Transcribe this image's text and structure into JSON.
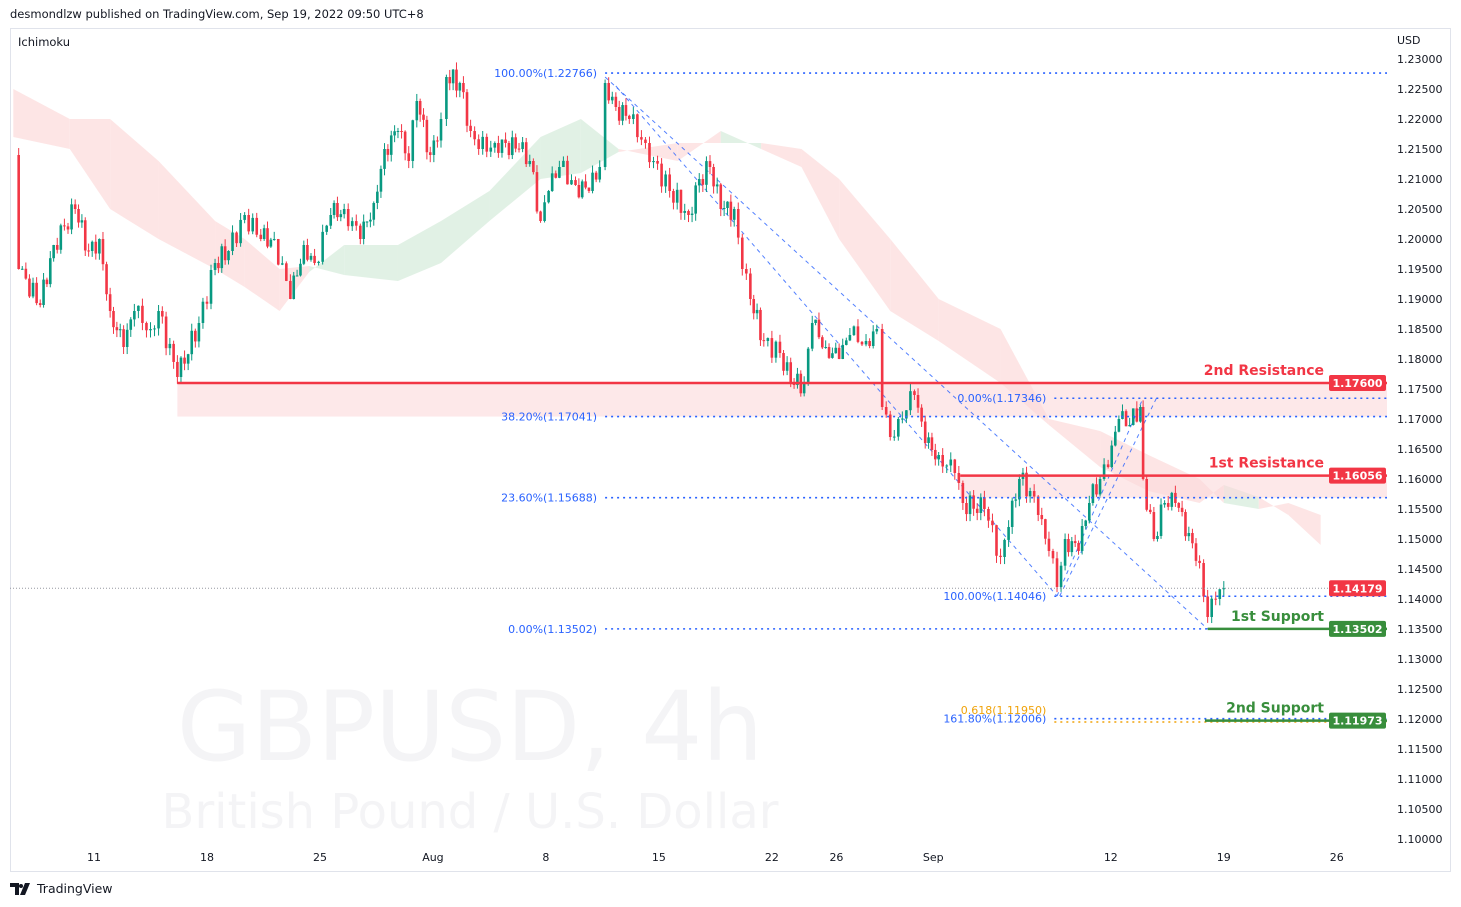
{
  "header": {
    "published": "desmondlzw published on TradingView.com, Sep 19, 2022 09:50 UTC+8",
    "indicator": "Ichimoku",
    "currency": "USD"
  },
  "watermark": {
    "symbol": "GBPUSD, 4h",
    "description": "British Pound / U.S. Dollar"
  },
  "footer": {
    "brand": "TradingView",
    "logo_icon": "tradingview-logo-icon"
  },
  "colors": {
    "up": "#089981",
    "down": "#f23645",
    "resistance": "#f23645",
    "support": "#388e3c",
    "fib": "#2962ff",
    "fib_ext": "#f0a30a",
    "cloud_bear": "#fcdcdc",
    "cloud_bull": "#d9eedf",
    "zone": "#fbd9db",
    "last_price": "#f23645"
  },
  "chart_data": {
    "type": "candlestick",
    "symbol": "GBPUSD",
    "timeframe": "4h",
    "ylim": [
      1.095,
      1.235
    ],
    "y_ticks": [
      "1.23000",
      "1.22500",
      "1.22000",
      "1.21500",
      "1.21000",
      "1.20500",
      "1.20000",
      "1.19500",
      "1.19000",
      "1.18500",
      "1.18000",
      "1.17500",
      "1.17000",
      "1.16500",
      "1.16000",
      "1.15500",
      "1.15000",
      "1.14500",
      "1.14000",
      "1.13500",
      "1.13000",
      "1.12500",
      "1.12000",
      "1.11500",
      "1.11000",
      "1.10500",
      "1.10000"
    ],
    "x_ticks": [
      {
        "date": "2022-07-11",
        "label": "11"
      },
      {
        "date": "2022-07-18",
        "label": "18"
      },
      {
        "date": "2022-07-25",
        "label": "25"
      },
      {
        "date": "2022-08-01",
        "label": "Aug"
      },
      {
        "date": "2022-08-08",
        "label": "8"
      },
      {
        "date": "2022-08-15",
        "label": "15"
      },
      {
        "date": "2022-08-22",
        "label": "22"
      },
      {
        "date": "2022-08-26",
        "label": "26"
      },
      {
        "date": "2022-09-01",
        "label": "Sep"
      },
      {
        "date": "2022-09-12",
        "label": "12"
      },
      {
        "date": "2022-09-19",
        "label": "19"
      },
      {
        "date": "2022-09-26",
        "label": "26"
      }
    ],
    "price_path": [
      [
        "2022-07-06T00",
        1.21
      ],
      [
        "2022-07-06T08",
        1.195
      ],
      [
        "2022-07-07T16",
        1.189
      ],
      [
        "2022-07-08T12",
        1.199
      ],
      [
        "2022-07-09T20",
        1.205
      ],
      [
        "2022-07-10T16",
        1.198
      ],
      [
        "2022-07-11T08",
        1.2
      ],
      [
        "2022-07-12T00",
        1.188
      ],
      [
        "2022-07-12T20",
        1.182
      ],
      [
        "2022-07-13T12",
        1.188
      ],
      [
        "2022-07-14T12",
        1.185
      ],
      [
        "2022-07-15T00",
        1.188
      ],
      [
        "2022-07-16T04",
        1.177
      ],
      [
        "2022-07-17T12",
        1.186
      ],
      [
        "2022-07-18T12",
        1.196
      ],
      [
        "2022-07-19T08",
        1.198
      ],
      [
        "2022-07-20T08",
        1.204
      ],
      [
        "2022-07-21T08",
        1.2
      ],
      [
        "2022-07-22T04",
        1.2
      ],
      [
        "2022-07-23T04",
        1.19
      ],
      [
        "2022-07-24T00",
        1.199
      ],
      [
        "2022-07-24T16",
        1.196
      ],
      [
        "2022-07-25T16",
        1.204
      ],
      [
        "2022-07-26T12",
        1.205
      ],
      [
        "2022-07-27T12",
        1.2
      ],
      [
        "2022-07-28T08",
        1.206
      ],
      [
        "2022-07-29T00",
        1.215
      ],
      [
        "2022-07-29T20",
        1.218
      ],
      [
        "2022-07-30T12",
        1.213
      ],
      [
        "2022-07-31T00",
        1.223
      ],
      [
        "2022-07-31T20",
        1.214
      ],
      [
        "2022-08-01T12",
        1.22
      ],
      [
        "2022-08-01T20",
        1.227
      ],
      [
        "2022-08-02T16",
        1.226
      ],
      [
        "2022-08-03T08",
        1.218
      ],
      [
        "2022-08-03T20",
        1.215
      ],
      [
        "2022-08-04T20",
        1.216
      ],
      [
        "2022-08-05T12",
        1.216
      ],
      [
        "2022-08-06T08",
        1.215
      ],
      [
        "2022-08-07T00",
        1.213
      ],
      [
        "2022-08-07T16",
        1.203
      ],
      [
        "2022-08-08T04",
        1.208
      ],
      [
        "2022-08-08T20",
        1.212
      ],
      [
        "2022-08-09T20",
        1.209
      ],
      [
        "2022-08-10T16",
        1.208
      ],
      [
        "2022-08-11T08",
        1.212
      ],
      [
        "2022-08-11T16",
        1.226
      ],
      [
        "2022-08-12T08",
        1.222
      ],
      [
        "2022-08-13T04",
        1.22
      ],
      [
        "2022-08-14T04",
        1.216
      ],
      [
        "2022-08-14T16",
        1.213
      ],
      [
        "2022-08-15T16",
        1.208
      ],
      [
        "2022-08-16T20",
        1.204
      ],
      [
        "2022-08-17T12",
        1.21
      ],
      [
        "2022-08-18T04",
        1.212
      ],
      [
        "2022-08-18T20",
        1.205
      ],
      [
        "2022-08-19T16",
        1.205
      ],
      [
        "2022-08-20T04",
        1.195
      ],
      [
        "2022-08-20T16",
        1.19
      ],
      [
        "2022-08-21T12",
        1.183
      ],
      [
        "2022-08-22T12",
        1.181
      ],
      [
        "2022-08-23T04",
        1.176
      ],
      [
        "2022-08-24T00",
        1.176
      ],
      [
        "2022-08-24T12",
        1.186
      ],
      [
        "2022-08-25T08",
        1.182
      ],
      [
        "2022-08-26T04",
        1.18
      ],
      [
        "2022-08-26T20",
        1.184
      ],
      [
        "2022-08-27T20",
        1.183
      ],
      [
        "2022-08-28T12",
        1.185
      ],
      [
        "2022-08-28T20",
        1.172
      ],
      [
        "2022-08-29T08",
        1.167
      ],
      [
        "2022-08-29T20",
        1.17
      ],
      [
        "2022-08-30T20",
        1.174
      ],
      [
        "2022-08-31T12",
        1.166
      ],
      [
        "2022-09-01T08",
        1.164
      ],
      [
        "2022-09-02T08",
        1.161
      ],
      [
        "2022-09-02T20",
        1.156
      ],
      [
        "2022-09-04T04",
        1.155
      ],
      [
        "2022-09-05T04",
        1.147
      ],
      [
        "2022-09-05T16",
        1.152
      ],
      [
        "2022-09-06T08",
        1.16
      ],
      [
        "2022-09-07T00",
        1.158
      ],
      [
        "2022-09-07T12",
        1.154
      ],
      [
        "2022-09-08T04",
        1.148
      ],
      [
        "2022-09-08T16",
        1.142
      ],
      [
        "2022-09-09T04",
        1.15
      ],
      [
        "2022-09-10T00",
        1.148
      ],
      [
        "2022-09-10T16",
        1.156
      ],
      [
        "2022-09-11T08",
        1.16
      ],
      [
        "2022-09-11T20",
        1.162
      ],
      [
        "2022-09-12T12",
        1.17
      ],
      [
        "2022-09-13T04",
        1.169
      ],
      [
        "2022-09-13T20",
        1.172
      ],
      [
        "2022-09-14T00",
        1.16
      ],
      [
        "2022-09-14T16",
        1.15
      ],
      [
        "2022-09-15T08",
        1.156
      ],
      [
        "2022-09-16T00",
        1.156
      ],
      [
        "2022-09-16T20",
        1.151
      ],
      [
        "2022-09-17T12",
        1.146
      ],
      [
        "2022-09-18T00",
        1.137
      ],
      [
        "2022-09-18T12",
        1.14
      ],
      [
        "2022-09-19T00",
        1.14179
      ]
    ],
    "ichimoku_cloud": [
      [
        "2022-07-06T00",
        1.217,
        1.225
      ],
      [
        "2022-07-09T12",
        1.215,
        1.22
      ],
      [
        "2022-07-12T00",
        1.205,
        1.22
      ],
      [
        "2022-07-15T00",
        1.2,
        1.213
      ],
      [
        "2022-07-18T12",
        1.195,
        1.203
      ],
      [
        "2022-07-20T08",
        1.192,
        1.2
      ],
      [
        "2022-07-22T12",
        1.188,
        1.195
      ],
      [
        "2022-07-24T08",
        1.1945,
        1.1955
      ],
      [
        "2022-07-26T12",
        1.199,
        1.194
      ],
      [
        "2022-07-29T20",
        1.199,
        1.193
      ],
      [
        "2022-08-01T12",
        1.203,
        1.196
      ],
      [
        "2022-08-04T12",
        1.208,
        1.203
      ],
      [
        "2022-08-07T16",
        1.217,
        1.21
      ],
      [
        "2022-08-10T04",
        1.22,
        1.211
      ],
      [
        "2022-08-12T12",
        1.215,
        1.2145
      ],
      [
        "2022-08-16T04",
        1.213,
        1.216
      ],
      [
        "2022-08-18T20",
        1.218,
        1.216
      ],
      [
        "2022-08-21T08",
        1.215,
        1.216
      ],
      [
        "2022-08-23T20",
        1.212,
        1.215
      ],
      [
        "2022-08-26T04",
        1.2,
        1.21
      ],
      [
        "2022-08-29T08",
        1.188,
        1.2
      ],
      [
        "2022-09-01T08",
        1.183,
        1.19
      ],
      [
        "2022-09-05T04",
        1.176,
        1.185
      ],
      [
        "2022-09-08T04",
        1.169,
        1.17
      ],
      [
        "2022-09-11T08",
        1.162,
        1.168
      ],
      [
        "2022-09-14T08",
        1.158,
        1.164
      ],
      [
        "2022-09-17T12",
        1.156,
        1.16
      ],
      [
        "2022-09-19T00",
        1.159,
        1.156
      ],
      [
        "2022-09-21T04",
        1.157,
        1.155
      ],
      [
        "2022-09-23T00",
        1.154,
        1.156
      ],
      [
        "2022-09-25T00",
        1.149,
        1.154
      ]
    ],
    "levels": [
      {
        "name": "2nd Resistance",
        "price": 1.176,
        "label": "1.17600",
        "kind": "resistance",
        "from": "2022-07-16T04",
        "zone_to": 1.17041
      },
      {
        "name": "1st Resistance",
        "price": 1.16056,
        "label": "1.16056",
        "kind": "resistance",
        "from": "2022-09-02T16",
        "zone_to": 1.15688
      },
      {
        "name": "1st Support",
        "price": 1.13502,
        "label": "1.13502",
        "kind": "support",
        "from": "2022-09-18T00"
      },
      {
        "name": "2nd Support",
        "price": 1.11973,
        "label": "1.11973",
        "kind": "support",
        "from": "2022-09-17T20"
      }
    ],
    "fib_levels": [
      {
        "label": "100.00%(1.22766)",
        "price": 1.22766,
        "from": "2022-08-11T16",
        "color": "fib"
      },
      {
        "label": "38.20%(1.17041)",
        "price": 1.17041,
        "from": "2022-08-11T16",
        "color": "fib"
      },
      {
        "label": "23.60%(1.15688)",
        "price": 1.15688,
        "from": "2022-08-11T16",
        "color": "fib"
      },
      {
        "label": "0.00%(1.13502)",
        "price": 1.13502,
        "from": "2022-08-11T16",
        "color": "fib"
      },
      {
        "label": "0.00%(1.17346)",
        "price": 1.17346,
        "from": "2022-09-08T12",
        "color": "fib"
      },
      {
        "label": "100.00%(1.14046)",
        "price": 1.14046,
        "from": "2022-09-08T12",
        "color": "fib"
      },
      {
        "label": "161.80%(1.12006)",
        "price": 1.12006,
        "from": "2022-09-08T12",
        "color": "fib"
      },
      {
        "label": "0.618(1.11950)",
        "price": 1.1195,
        "from": "2022-09-08T12",
        "color": "fib_ext"
      }
    ],
    "trend_lines": [
      [
        [
          "2022-08-11T16",
          1.227
        ],
        [
          "2022-09-18T00",
          1.135
        ]
      ],
      [
        [
          "2022-08-12T08",
          1.2255
        ],
        [
          "2022-09-08T16",
          1.1405
        ]
      ],
      [
        [
          "2022-09-08T16",
          1.1405
        ],
        [
          "2022-09-14T00",
          1.1735
        ]
      ],
      [
        [
          "2022-09-08T20",
          1.1405
        ],
        [
          "2022-09-14T20",
          1.1735
        ]
      ]
    ],
    "last_price": {
      "price": 1.14179,
      "label": "1.14179"
    }
  }
}
